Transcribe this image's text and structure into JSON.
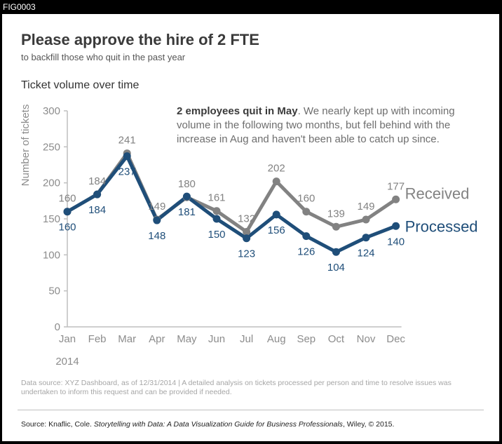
{
  "figure_label": "FIG0003",
  "title": "Please approve the hire of 2 FTE",
  "subtitle": "to backfill those who quit in the past year",
  "annotation": {
    "bold": "2 employees quit in May",
    "rest": ". We nearly kept up with incoming volume in the following two months, but fell behind with the increase in Aug and haven't been able to catch up since."
  },
  "footnote": "Data source: XYZ Dashboard, as of 12/31/2014 | A detailed analysis on tickets processed per person and time to resolve issues was undertaken to inform this request and can be provided if needed.",
  "source": {
    "prefix": "Source: Knaflic, Cole. ",
    "book": "Storytelling with Data: A Data Visualization Guide for Business Professionals",
    "suffix": ", Wiley, © 2015."
  },
  "colors": {
    "received": "#828282",
    "processed": "#1f4e79",
    "axis": "#bfbfbf",
    "tick_text": "#8c8c8c"
  },
  "chart_data": {
    "type": "line",
    "title": "Ticket volume over time",
    "xlabel": "",
    "ylabel": "Number of tickets",
    "year_label": "2014",
    "categories": [
      "Jan",
      "Feb",
      "Mar",
      "Apr",
      "May",
      "Jun",
      "Jul",
      "Aug",
      "Sep",
      "Oct",
      "Nov",
      "Dec"
    ],
    "ylim": [
      0,
      300
    ],
    "yticks": [
      0,
      50,
      100,
      150,
      200,
      250,
      300
    ],
    "grid": false,
    "legend": "direct labels at line ends",
    "series": [
      {
        "name": "Received",
        "values": [
          160,
          184,
          241,
          149,
          180,
          161,
          132,
          202,
          160,
          139,
          149,
          177
        ]
      },
      {
        "name": "Processed",
        "values": [
          160,
          184,
          237,
          148,
          181,
          150,
          123,
          156,
          126,
          104,
          124,
          140
        ]
      }
    ]
  }
}
